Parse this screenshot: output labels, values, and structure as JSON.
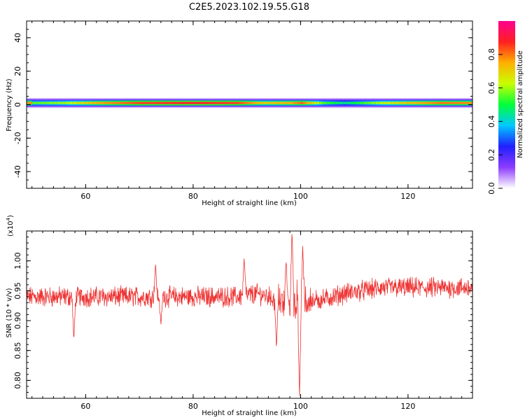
{
  "title": "C2E5.2023.102.19.55.G18",
  "colors": {
    "snr_line": "#ee3333",
    "colormap": [
      "#ffffff",
      "#8d3cff",
      "#2020ff",
      "#00c8ff",
      "#00ff3a",
      "#c8ff00",
      "#ffb000",
      "#ff2020",
      "#ff0090"
    ]
  },
  "chart_data": [
    {
      "type": "heatmap",
      "xlabel": "Height of straight line (km)",
      "ylabel": "Frequency (Hz)",
      "xlim": [
        49,
        132
      ],
      "ylim": [
        -50,
        50
      ],
      "xticks": [
        60,
        80,
        100,
        120
      ],
      "yticks": [
        40,
        20,
        0,
        -20,
        -40
      ],
      "colorbar": {
        "label": "Normalized spectral amplitude",
        "range": [
          0.0,
          1.0
        ],
        "ticks": [
          "0.0",
          "0.2",
          "0.4",
          "0.6",
          "0.8"
        ]
      },
      "description_band": {
        "center_hz": 1.0,
        "core_halfwidth_hz": 1.5,
        "halo_halfwidth_hz": 3.0,
        "amplitude_profile": [
          {
            "x": 50,
            "amp": 0.55
          },
          {
            "x": 56,
            "amp": 0.6
          },
          {
            "x": 62,
            "amp": 0.75
          },
          {
            "x": 70,
            "amp": 0.85
          },
          {
            "x": 80,
            "amp": 0.88
          },
          {
            "x": 88,
            "amp": 0.85
          },
          {
            "x": 93,
            "amp": 0.7
          },
          {
            "x": 98,
            "amp": 0.75
          },
          {
            "x": 100,
            "amp": 0.82
          },
          {
            "x": 104,
            "amp": 0.55
          },
          {
            "x": 108,
            "amp": 0.45
          },
          {
            "x": 114,
            "amp": 0.6
          },
          {
            "x": 120,
            "amp": 0.72
          },
          {
            "x": 126,
            "amp": 0.8
          },
          {
            "x": 132,
            "amp": 0.78
          }
        ]
      }
    },
    {
      "type": "line",
      "xlabel": "Height of straight line (km)",
      "ylabel": "SNR (10 * v/v)",
      "exponent_label": "(x10",
      "exponent_power": "4",
      "exponent_close": ")",
      "xlim": [
        49,
        132
      ],
      "ylim": [
        0.77,
        1.05
      ],
      "xticks": [
        60,
        80,
        100,
        120
      ],
      "yticks": [
        "1.00",
        "0.95",
        "0.90",
        "0.85",
        "0.80"
      ],
      "series": [
        {
          "baseline": [
            {
              "x": 49,
              "y": 0.94
            },
            {
              "x": 60,
              "y": 0.94
            },
            {
              "x": 70,
              "y": 0.94
            },
            {
              "x": 80,
              "y": 0.94
            },
            {
              "x": 88,
              "y": 0.94
            },
            {
              "x": 92,
              "y": 0.945
            },
            {
              "x": 96,
              "y": 0.935
            },
            {
              "x": 100,
              "y": 0.93
            },
            {
              "x": 104,
              "y": 0.935
            },
            {
              "x": 108,
              "y": 0.945
            },
            {
              "x": 115,
              "y": 0.955
            },
            {
              "x": 122,
              "y": 0.955
            },
            {
              "x": 132,
              "y": 0.955
            }
          ],
          "features": [
            {
              "x": 57.8,
              "y": 0.867
            },
            {
              "x": 73.0,
              "y": 0.995
            },
            {
              "x": 74.0,
              "y": 0.892
            },
            {
              "x": 89.5,
              "y": 1.005
            },
            {
              "x": 95.5,
              "y": 0.853
            },
            {
              "x": 97.3,
              "y": 1.0
            },
            {
              "x": 98.4,
              "y": 1.05
            },
            {
              "x": 99.8,
              "y": 0.77
            },
            {
              "x": 100.4,
              "y": 1.025
            }
          ]
        }
      ]
    }
  ]
}
